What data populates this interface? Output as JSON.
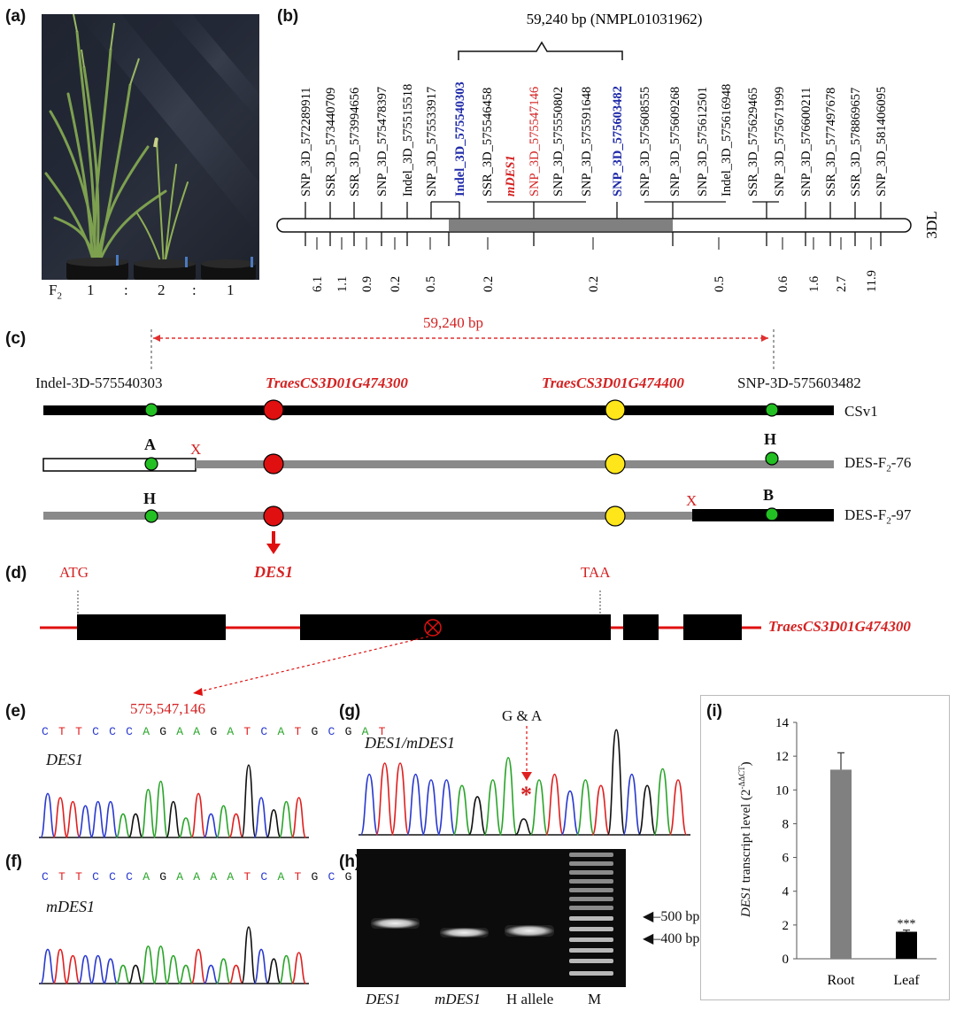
{
  "panels": {
    "a": "(a)",
    "b": "(b)",
    "c": "(c)",
    "d": "(d)",
    "e": "(e)",
    "f": "(f)",
    "g": "(g)",
    "h": "(h)",
    "i": "(i)"
  },
  "panel_a": {
    "generation": "F",
    "generation_sub": "2",
    "ratio": [
      "1",
      ":",
      "2",
      ":",
      "1"
    ]
  },
  "panel_b": {
    "interval_label": "59,240 bp (NMPL01031962)",
    "chromosome": "3DL",
    "markers": [
      "SNP_3D_572289911",
      "SSR_3D_573440709",
      "SSR_3D_573994656",
      "SNP_3D_575478397",
      "Indel_3D_575515518",
      "SNP_3D_575533917",
      "Indel_3D_575540303",
      "SSR_3D_575546458",
      "mDES1",
      "SNP_3D_575547146",
      "SNP_3D_575550802",
      "SNP_3D_575591648",
      "SNP_3D_575603482",
      "SNP_3D_575608555",
      "SNP_3D_575609268",
      "SNP_3D_575612501",
      "Indel_3D_575616948",
      "SSR_3D_575629465",
      "SNP_3D_575671999",
      "SNP_3D_576600211",
      "SSR_3D_577497678",
      "SSR_3D_578869657",
      "SNP_3D_581406095"
    ],
    "distances": [
      "6.1",
      "1.1",
      "0.9",
      "0.2",
      "0.5",
      "0.2",
      "0.2",
      "0.5",
      "0.6",
      "1.6",
      "2.7",
      "11.9"
    ]
  },
  "panel_c": {
    "interval": "59,240 bp",
    "left_marker": "Indel-3D-575540303",
    "right_marker": "SNP-3D-575603482",
    "gene1": "TraesCS3D01G474300",
    "gene2": "TraesCS3D01G474400",
    "rows": [
      {
        "name": "CSv1"
      },
      {
        "name": "DES-F",
        "sub": "2",
        "suffix": "-76",
        "left": "A",
        "right": "H",
        "cross": "X"
      },
      {
        "name": "DES-F",
        "sub": "2",
        "suffix": "-97",
        "left": "H",
        "right": "B",
        "cross": "X"
      }
    ],
    "gene_name": "DES1"
  },
  "panel_d": {
    "start": "ATG",
    "stop": "TAA",
    "gene": "TraesCS3D01G474300"
  },
  "panel_e": {
    "position": "575,547,146",
    "sequence": "CTTCCCAGAAGATCATGCGAT",
    "label": "DES1"
  },
  "panel_f": {
    "sequence": "CTTCCCAGAAAATCATGCGAT",
    "label": "mDES1"
  },
  "panel_g": {
    "label": "DES1/mDES1",
    "snp": "G & A",
    "star": "*"
  },
  "panel_h": {
    "lanes": [
      "DES1",
      "mDES1",
      "H allele",
      "M"
    ],
    "size_500": "500 bp",
    "size_400": "400 bp"
  },
  "chart_data": {
    "type": "bar",
    "categories": [
      "Root",
      "Leaf"
    ],
    "values": [
      11.2,
      1.6
    ],
    "errors": [
      1.0,
      0.1
    ],
    "colors": [
      "#808080",
      "#000000"
    ],
    "significance": [
      "",
      "***"
    ],
    "ylabel": "DES1 transcript level (2^-ΔΔCT)",
    "ylabel_gene": "DES1",
    "ylabel_rest": " transcript  level (2",
    "ylabel_sup": "-ΔΔCT",
    "ylabel_close": ")",
    "ylim": [
      0,
      14
    ],
    "yticks": [
      "0",
      "2",
      "4",
      "6",
      "8",
      "10",
      "12",
      "14"
    ]
  }
}
